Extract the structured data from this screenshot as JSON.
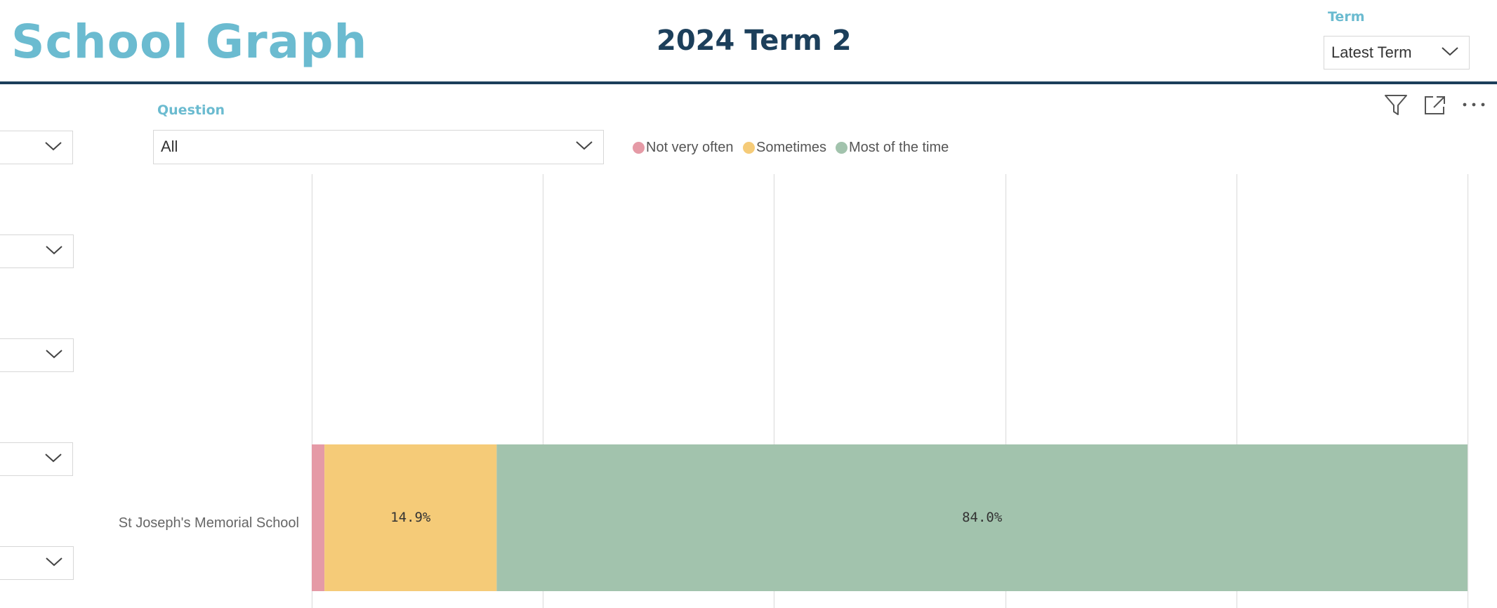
{
  "header": {
    "app_title": "School Graph",
    "term_heading": "2024 Term 2",
    "term_filter": {
      "label": "Term",
      "value": "Latest Term"
    }
  },
  "filters": {
    "question": {
      "label": "Question",
      "value": "All"
    }
  },
  "toolbar": {
    "icons": [
      "filter-icon",
      "focus-mode-icon",
      "more-options-icon"
    ]
  },
  "colors": {
    "brand_light": "#6BBBD0",
    "brand_dark": "#1C3F5B",
    "not_very_often": "#E59AA6",
    "sometimes": "#F5CB78",
    "most_of_the_time": "#A2C3AD"
  },
  "chart_data": {
    "type": "bar",
    "orientation": "horizontal",
    "stacked": true,
    "categories": [
      "St Joseph's Memorial School"
    ],
    "series": [
      {
        "name": "Not very often",
        "values": [
          1.1
        ],
        "color": "#E59AA6",
        "label": ""
      },
      {
        "name": "Sometimes",
        "values": [
          14.9
        ],
        "color": "#F5CB78",
        "label": "14.9%"
      },
      {
        "name": "Most of the time",
        "values": [
          84.0
        ],
        "color": "#A2C3AD",
        "label": "84.0%"
      }
    ],
    "xlim": [
      0,
      100
    ],
    "gridlines": [
      0,
      20,
      40,
      60,
      80,
      100
    ],
    "grid": true,
    "legend_position": "top-left"
  }
}
